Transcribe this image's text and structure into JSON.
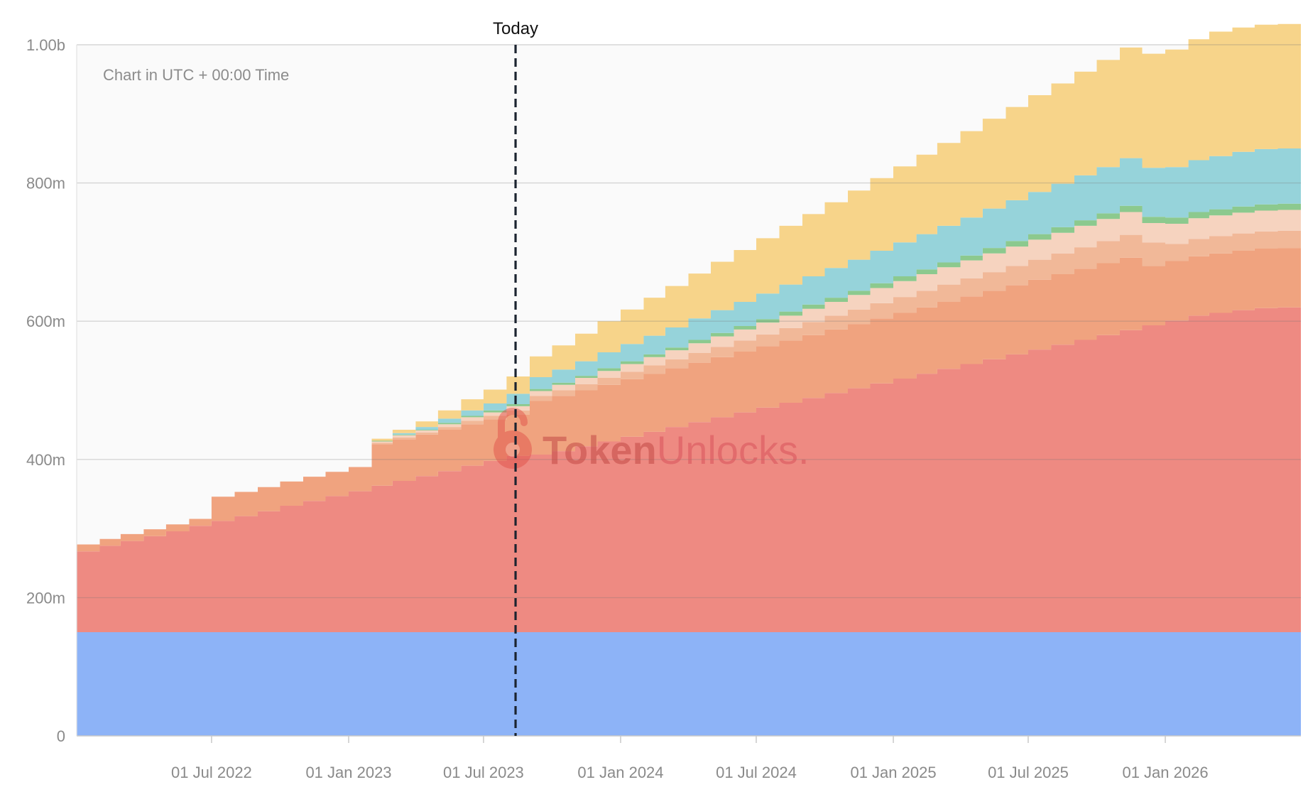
{
  "chart_data": {
    "type": "area",
    "stacked": true,
    "step": true,
    "note": "Chart in UTC + 00:00 Time",
    "today_label": "Today",
    "today_date": "2023-08-13",
    "x_range": [
      "2022-01-01",
      "2026-07-02"
    ],
    "ylim": [
      0,
      1000000000
    ],
    "y_ticks": [
      {
        "value": 0,
        "label": "0"
      },
      {
        "value": 200000000,
        "label": "200m"
      },
      {
        "value": 400000000,
        "label": "400m"
      },
      {
        "value": 600000000,
        "label": "600m"
      },
      {
        "value": 800000000,
        "label": "800m"
      },
      {
        "value": 1000000000,
        "label": "1.00b"
      }
    ],
    "x_ticks": [
      {
        "date": "2022-07-01",
        "label": "01 Jul 2022"
      },
      {
        "date": "2023-01-01",
        "label": "01 Jan 2023"
      },
      {
        "date": "2023-07-01",
        "label": "01 Jul 2023"
      },
      {
        "date": "2024-01-01",
        "label": "01 Jan 2024"
      },
      {
        "date": "2024-07-01",
        "label": "01 Jul 2024"
      },
      {
        "date": "2025-01-01",
        "label": "01 Jan 2025"
      },
      {
        "date": "2025-07-01",
        "label": "01 Jul 2025"
      },
      {
        "date": "2026-01-01",
        "label": "01 Jan 2026"
      }
    ],
    "x": [
      "2022-01-01",
      "2022-02-01",
      "2022-03-01",
      "2022-04-01",
      "2022-05-01",
      "2022-06-01",
      "2022-07-01",
      "2022-08-01",
      "2022-09-01",
      "2022-10-01",
      "2022-11-01",
      "2022-12-01",
      "2023-01-01",
      "2023-02-01",
      "2023-03-01",
      "2023-04-01",
      "2023-05-01",
      "2023-06-01",
      "2023-07-01",
      "2023-08-01",
      "2023-09-01",
      "2023-10-01",
      "2023-11-01",
      "2023-12-01",
      "2024-01-01",
      "2024-02-01",
      "2024-03-01",
      "2024-04-01",
      "2024-05-01",
      "2024-06-01",
      "2024-07-01",
      "2024-08-01",
      "2024-09-01",
      "2024-10-01",
      "2024-11-01",
      "2024-12-01",
      "2025-01-01",
      "2025-02-01",
      "2025-03-01",
      "2025-04-01",
      "2025-05-01",
      "2025-06-01",
      "2025-07-01",
      "2025-08-01",
      "2025-09-01",
      "2025-10-01",
      "2025-11-01",
      "2025-12-01",
      "2026-01-01",
      "2026-02-01",
      "2026-03-01",
      "2026-04-01",
      "2026-05-01",
      "2026-06-01"
    ],
    "series": [
      {
        "color": "#8db3f7",
        "values": [
          150000000,
          150000000,
          150000000,
          150000000,
          150000000,
          150000000,
          150000000,
          150000000,
          150000000,
          150000000,
          150000000,
          150000000,
          150000000,
          150000000,
          150000000,
          150000000,
          150000000,
          150000000,
          150000000,
          150000000,
          150000000,
          150000000,
          150000000,
          150000000,
          150000000,
          150000000,
          150000000,
          150000000,
          150000000,
          150000000,
          150000000,
          150000000,
          150000000,
          150000000,
          150000000,
          150000000,
          150000000,
          150000000,
          150000000,
          150000000,
          150000000,
          150000000,
          150000000,
          150000000,
          150000000,
          150000000,
          150000000,
          150000000,
          150000000,
          150000000,
          150000000,
          150000000,
          150000000,
          150000000
        ]
      },
      {
        "color": "#ee8a82",
        "values": [
          117000000,
          125000000,
          132000000,
          139000000,
          146000000,
          154000000,
          161000000,
          168000000,
          175000000,
          183000000,
          190000000,
          197000000,
          204000000,
          212000000,
          219000000,
          226000000,
          233000000,
          241000000,
          248000000,
          255000000,
          257000000,
          262000000,
          269000000,
          276000000,
          283000000,
          290000000,
          297000000,
          304000000,
          311000000,
          318000000,
          325000000,
          332000000,
          339000000,
          346000000,
          353000000,
          360000000,
          367000000,
          374000000,
          381000000,
          388000000,
          395000000,
          402000000,
          409000000,
          416000000,
          423000000,
          430000000,
          437000000,
          444000000,
          451000000,
          458000000,
          462000000,
          466000000,
          469000000,
          470000000
        ]
      },
      {
        "color": "#f0a37f",
        "values": [
          10000000,
          10000000,
          10000000,
          10000000,
          10000000,
          10000000,
          35000000,
          35000000,
          35000000,
          35000000,
          35000000,
          35000000,
          35000000,
          60000000,
          60000000,
          60000000,
          60000000,
          60000000,
          60000000,
          60000000,
          78000000,
          80000000,
          81000000,
          82000000,
          83000000,
          84000000,
          85000000,
          86000000,
          87000000,
          88000000,
          89000000,
          90000000,
          91000000,
          92000000,
          93000000,
          94000000,
          95000000,
          96000000,
          97000000,
          98000000,
          99000000,
          100000000,
          101000000,
          102000000,
          103000000,
          104000000,
          105000000,
          86000000,
          86000000,
          86000000,
          86000000,
          86000000,
          86000000,
          86000000
        ]
      },
      {
        "color": "#f1b898",
        "values": [
          0,
          0,
          0,
          0,
          0,
          0,
          0,
          0,
          0,
          0,
          0,
          0,
          0,
          2000000,
          3000000,
          3000000,
          4000000,
          5000000,
          5000000,
          6000000,
          7000000,
          8000000,
          9000000,
          10000000,
          11000000,
          12000000,
          13000000,
          14000000,
          15000000,
          16000000,
          17000000,
          18000000,
          19000000,
          20000000,
          21000000,
          22000000,
          23000000,
          24000000,
          25000000,
          26000000,
          27000000,
          28000000,
          29000000,
          30000000,
          31000000,
          32000000,
          33000000,
          34000000,
          25000000,
          25000000,
          25000000,
          25000000,
          25000000,
          25000000
        ]
      },
      {
        "color": "#f6d3bf",
        "values": [
          0,
          0,
          0,
          0,
          0,
          0,
          0,
          0,
          0,
          0,
          0,
          0,
          0,
          2000000,
          3000000,
          3000000,
          4000000,
          5000000,
          5000000,
          6000000,
          7000000,
          8000000,
          9000000,
          10000000,
          11000000,
          12000000,
          13000000,
          14000000,
          15000000,
          16000000,
          17000000,
          18000000,
          19000000,
          20000000,
          21000000,
          22000000,
          23000000,
          24000000,
          25000000,
          26000000,
          27000000,
          28000000,
          29000000,
          30000000,
          31000000,
          32000000,
          33000000,
          28000000,
          29000000,
          30000000,
          30000000,
          30000000,
          30000000,
          30000000
        ]
      },
      {
        "color": "#8cc98e",
        "values": [
          0,
          0,
          0,
          0,
          0,
          0,
          0,
          0,
          0,
          0,
          0,
          0,
          0,
          1000000,
          1000000,
          1000000,
          2000000,
          2000000,
          3000000,
          3000000,
          3000000,
          3000000,
          3000000,
          4000000,
          4000000,
          4000000,
          4000000,
          5000000,
          5000000,
          5000000,
          5000000,
          6000000,
          6000000,
          6000000,
          6000000,
          7000000,
          7000000,
          7000000,
          7000000,
          7000000,
          8000000,
          8000000,
          8000000,
          8000000,
          8000000,
          8000000,
          9000000,
          9000000,
          9000000,
          9000000,
          9000000,
          9000000,
          9000000,
          9000000
        ]
      },
      {
        "color": "#96d3da",
        "values": [
          0,
          0,
          0,
          0,
          0,
          0,
          0,
          0,
          0,
          0,
          0,
          0,
          0,
          0,
          2000000,
          4000000,
          6000000,
          8000000,
          10000000,
          15000000,
          17000000,
          19000000,
          21000000,
          23000000,
          25000000,
          27000000,
          29000000,
          31000000,
          33000000,
          35000000,
          37000000,
          39000000,
          41000000,
          43000000,
          45000000,
          47000000,
          49000000,
          51000000,
          53000000,
          55000000,
          57000000,
          59000000,
          61000000,
          63000000,
          65000000,
          67000000,
          69000000,
          71000000,
          73000000,
          75000000,
          77000000,
          79000000,
          80000000,
          80000000
        ]
      },
      {
        "color": "#f7d48a",
        "values": [
          0,
          0,
          0,
          0,
          0,
          0,
          0,
          0,
          0,
          0,
          0,
          0,
          0,
          3000000,
          5000000,
          8000000,
          12000000,
          16000000,
          20000000,
          25000000,
          30000000,
          35000000,
          40000000,
          45000000,
          50000000,
          55000000,
          60000000,
          65000000,
          70000000,
          75000000,
          80000000,
          85000000,
          90000000,
          95000000,
          100000000,
          105000000,
          110000000,
          115000000,
          120000000,
          125000000,
          130000000,
          135000000,
          140000000,
          145000000,
          150000000,
          155000000,
          160000000,
          165000000,
          170000000,
          175000000,
          180000000,
          180000000,
          180000000,
          180000000
        ]
      }
    ]
  },
  "watermark": {
    "brand_a": "Token",
    "brand_b": "Unlocks."
  }
}
